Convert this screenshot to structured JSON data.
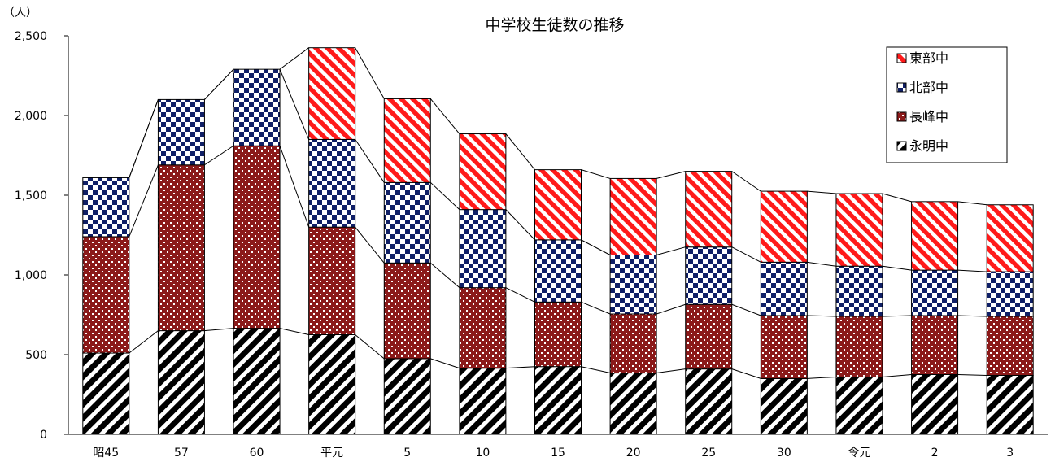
{
  "chart_data": {
    "type": "bar",
    "stacked": true,
    "title": "中学校生徒数の推移",
    "unit_label": "（人）",
    "xlabel": "",
    "ylabel": "",
    "ylim": [
      0,
      2500
    ],
    "yticks": [
      0,
      500,
      1000,
      1500,
      2000,
      2500
    ],
    "ytick_labels": [
      "0",
      "500",
      "1,000",
      "1,500",
      "2,000",
      "2,500"
    ],
    "categories": [
      "昭45",
      "57",
      "60",
      "平元",
      "5",
      "10",
      "15",
      "20",
      "25",
      "30",
      "令元",
      "2",
      "3"
    ],
    "series": [
      {
        "name": "永明中",
        "values": [
          510,
          650,
          665,
          625,
          475,
          415,
          425,
          385,
          410,
          350,
          360,
          375,
          370
        ]
      },
      {
        "name": "長峰中",
        "values": [
          730,
          1040,
          1145,
          675,
          600,
          505,
          405,
          370,
          405,
          395,
          380,
          370,
          370
        ]
      },
      {
        "name": "北部中",
        "values": [
          370,
          410,
          480,
          550,
          505,
          490,
          390,
          370,
          360,
          335,
          315,
          285,
          280
        ]
      },
      {
        "name": "東部中",
        "values": [
          0,
          0,
          0,
          575,
          525,
          475,
          440,
          480,
          475,
          445,
          455,
          430,
          420
        ]
      }
    ],
    "legend": {
      "position": "top-right",
      "entries": [
        "東部中",
        "北部中",
        "長峰中",
        "永明中"
      ]
    },
    "grid": false,
    "colors": {
      "永明中": "#000000",
      "長峰中": "#8b1a1a",
      "北部中": "#0f1f66",
      "東部中": "#ff1a1a"
    }
  }
}
